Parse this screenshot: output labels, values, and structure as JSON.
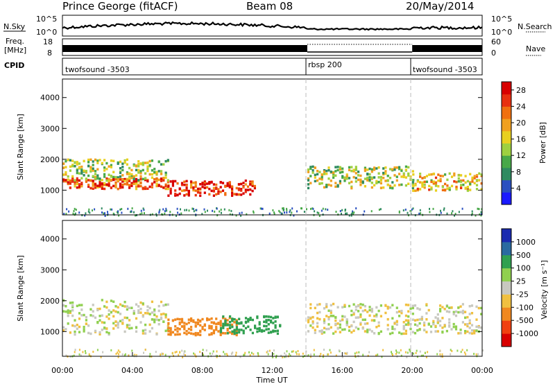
{
  "header": {
    "station": "Prince George (fitACF)",
    "beam": "Beam 08",
    "date": "20/May/2014"
  },
  "panels": {
    "nsky": {
      "label": "N.Sky",
      "right_label": "N.Search",
      "ticks_left": [
        "10^5",
        "10^0"
      ],
      "ticks_right": [
        "10^5",
        "10^0"
      ]
    },
    "freq": {
      "label_line1": "Freq.",
      "label_line2": "[MHz]",
      "ticks_left": [
        "18",
        "8"
      ],
      "ticks_right": [
        "60",
        "0"
      ],
      "right_label": "Nave"
    },
    "cpid": {
      "label": "CPID",
      "segments": [
        {
          "name": "twofsound -3503",
          "start": 0,
          "end": 14
        },
        {
          "name": "rbsp 200",
          "start": 14,
          "end": 20
        },
        {
          "name": "twofsound -3503",
          "start": 20,
          "end": 24
        }
      ]
    }
  },
  "chart_data": [
    {
      "type": "heatmap",
      "quantity": "Power",
      "ylabel": "Slant Range [km]",
      "xlabel": "Time UT",
      "xlim": [
        0,
        24
      ],
      "ylim": [
        200,
        4600
      ],
      "x_ticks": [
        "00:00",
        "04:00",
        "08:00",
        "12:00",
        "16:00",
        "20:00",
        "00:00"
      ],
      "y_ticks": [
        "1000",
        "2000",
        "3000",
        "4000"
      ],
      "colorbar": {
        "label": "Power [dB]",
        "ticks": [
          "4",
          "8",
          "12",
          "16",
          "20",
          "24",
          "28"
        ],
        "range": [
          0,
          30
        ]
      },
      "mode_change_times": [
        14,
        20
      ],
      "echo_bands": [
        {
          "start": 0,
          "end": 6,
          "center_km": 1250,
          "width_km": 250,
          "value": 24
        },
        {
          "start": 0,
          "end": 6,
          "center_km": 1700,
          "width_km": 500,
          "value": 14
        },
        {
          "start": 6,
          "end": 11,
          "center_km": 1100,
          "width_km": 350,
          "value": 27
        },
        {
          "start": 14,
          "end": 20,
          "center_km": 1450,
          "width_km": 500,
          "value": 14
        },
        {
          "start": 20,
          "end": 24,
          "center_km": 1300,
          "width_km": 400,
          "value": 18
        }
      ]
    },
    {
      "type": "heatmap",
      "quantity": "Velocity",
      "ylabel": "Slant Range [km]",
      "xlabel": "Time UT",
      "xlim": [
        0,
        24
      ],
      "ylim": [
        200,
        4600
      ],
      "x_ticks": [
        "00:00",
        "04:00",
        "08:00",
        "12:00",
        "16:00",
        "20:00",
        "00:00"
      ],
      "y_ticks": [
        "1000",
        "2000",
        "3000",
        "4000"
      ],
      "colorbar": {
        "label": "Velocity [m s⁻¹]",
        "ticks": [
          "1000",
          "500",
          "100",
          "25",
          "-25",
          "-100",
          "-500",
          "-1000"
        ]
      },
      "mode_change_times": [
        14,
        20
      ],
      "echo_bands": [
        {
          "start": 0,
          "end": 6,
          "center_km": 1500,
          "width_km": 800,
          "value": 0
        },
        {
          "start": 6,
          "end": 10,
          "center_km": 1200,
          "width_km": 400,
          "value": -300
        },
        {
          "start": 9,
          "end": 12.5,
          "center_km": 1250,
          "width_km": 400,
          "value": 200
        },
        {
          "start": 14,
          "end": 24,
          "center_km": 1450,
          "width_km": 700,
          "value": 0
        }
      ]
    }
  ]
}
